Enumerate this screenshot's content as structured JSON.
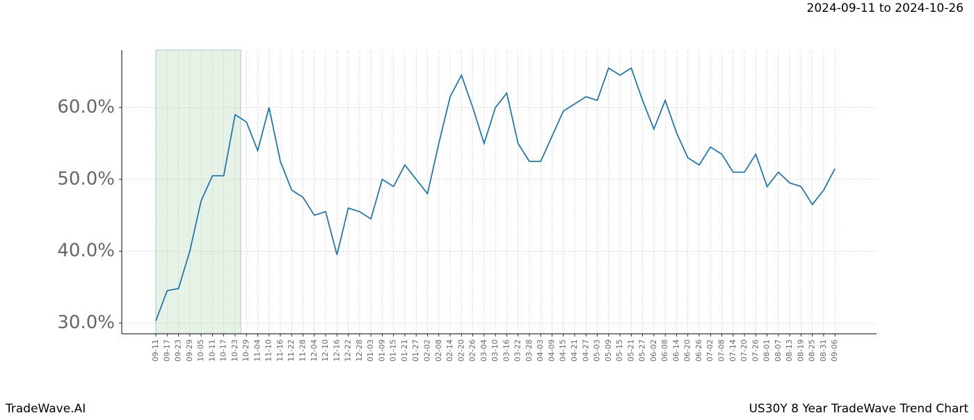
{
  "chart_data": {
    "type": "line",
    "date_range": "2024-09-11 to 2024-10-26",
    "brand": "TradeWave.AI",
    "title": "US30Y 8 Year TradeWave Trend Chart",
    "categories": [
      "09-11",
      "09-17",
      "09-23",
      "09-29",
      "10-05",
      "10-11",
      "10-17",
      "10-23",
      "10-29",
      "11-04",
      "11-10",
      "11-16",
      "11-22",
      "11-28",
      "12-04",
      "12-10",
      "12-16",
      "12-22",
      "12-28",
      "01-03",
      "01-09",
      "01-15",
      "01-21",
      "01-27",
      "02-02",
      "02-08",
      "02-14",
      "02-20",
      "02-26",
      "03-04",
      "03-10",
      "03-16",
      "03-22",
      "03-28",
      "04-03",
      "04-09",
      "04-15",
      "04-21",
      "04-27",
      "05-03",
      "05-09",
      "05-15",
      "05-21",
      "05-27",
      "06-02",
      "06-08",
      "06-14",
      "06-20",
      "06-26",
      "07-02",
      "07-08",
      "07-14",
      "07-20",
      "07-26",
      "08-01",
      "08-07",
      "08-13",
      "08-19",
      "08-25",
      "08-31",
      "09-06"
    ],
    "values": [
      30.3,
      34.5,
      34.8,
      40,
      47,
      50.5,
      50.5,
      59,
      58,
      54,
      60,
      52.5,
      48.5,
      47.5,
      45,
      45.5,
      39.5,
      46,
      45.5,
      44.5,
      50,
      49,
      52,
      50,
      48,
      55,
      61.5,
      64.5,
      60,
      55,
      60,
      62,
      55,
      52.5,
      52.5,
      56,
      59.5,
      60.5,
      61.5,
      61,
      65.5,
      64.5,
      65.5,
      61,
      57,
      61,
      56.5,
      53,
      52,
      54.5,
      53.5,
      51,
      51,
      53.5,
      49,
      51,
      49.5,
      49,
      46.5,
      48.5,
      51.5
    ],
    "color": "#1f77b4",
    "highlight": {
      "from": 0,
      "to": 7.5,
      "color": "#e6f2e6"
    },
    "ylim": [
      28.5,
      68
    ],
    "yticks": [
      {
        "value": 30,
        "label": "30.0%"
      },
      {
        "value": 40,
        "label": "40.0%"
      },
      {
        "value": 50,
        "label": "50.0%"
      },
      {
        "value": 60,
        "label": "60.0%"
      }
    ],
    "grid": true
  }
}
